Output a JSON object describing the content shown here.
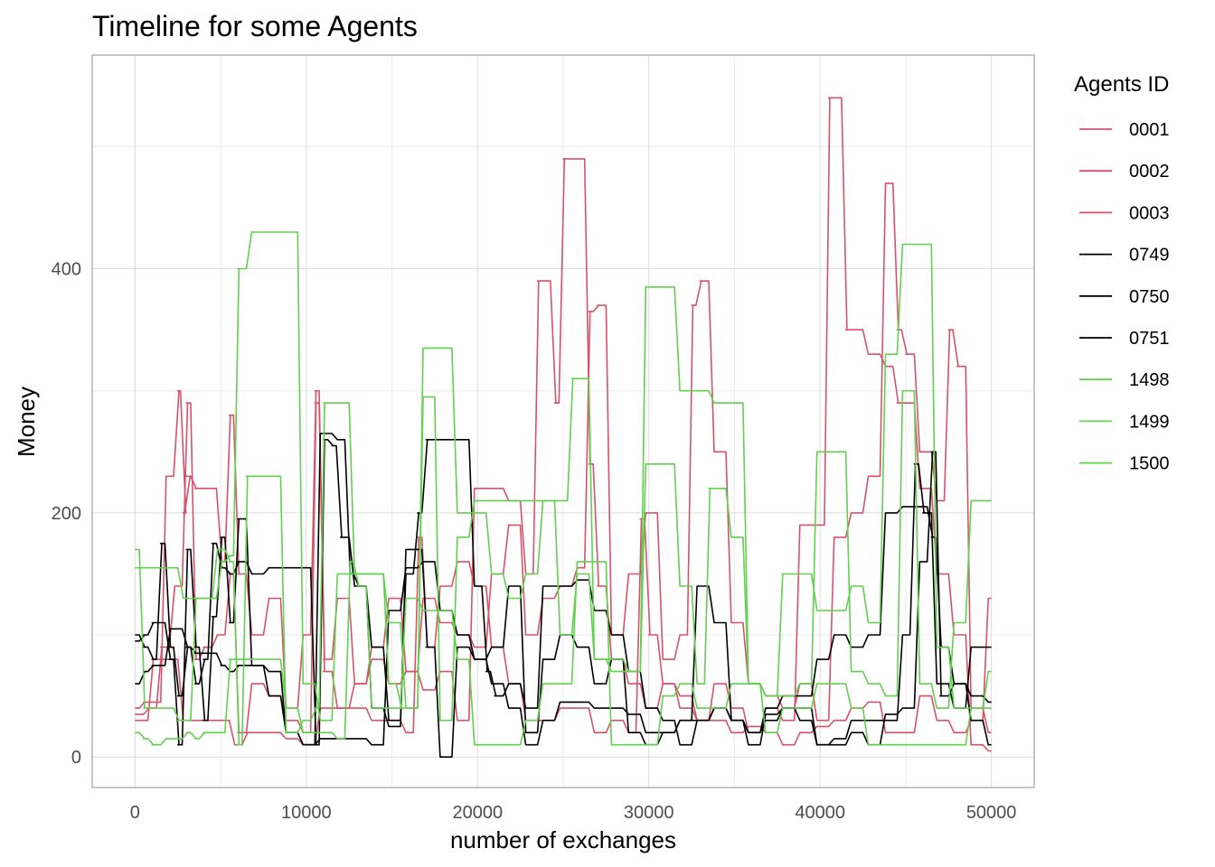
{
  "chart_data": {
    "type": "line",
    "title": "Timeline for some Agents",
    "xlabel": "number of exchanges",
    "ylabel": "Money",
    "xlim": [
      -2500,
      52500
    ],
    "ylim": [
      -25,
      575
    ],
    "x_ticks": [
      0,
      10000,
      20000,
      30000,
      40000,
      50000
    ],
    "y_ticks": [
      0,
      200,
      400
    ],
    "x_tick_labels": [
      "0",
      "10000",
      "20000",
      "30000",
      "40000",
      "50000"
    ],
    "y_tick_labels": [
      "0",
      "200",
      "400"
    ],
    "grid": true,
    "legend_position": "right",
    "legend_title": "Agents ID",
    "series": [
      {
        "name": "0001",
        "color": "#d6526b",
        "x": [
          0,
          500,
          1000,
          2000,
          2500,
          2800,
          3000,
          3500,
          4500,
          5000,
          5500,
          6000,
          7000,
          8000,
          9000,
          10000,
          10500,
          11000,
          12000,
          13000,
          14000,
          15000,
          16000,
          17000,
          18000,
          19000,
          20000,
          21000,
          22000,
          23000,
          23500,
          24000,
          24500,
          25000,
          26000,
          26500,
          27000,
          28000,
          29000,
          30000,
          31000,
          32000,
          33000,
          34000,
          35000,
          36000,
          37000,
          38000,
          39000,
          40000,
          40500,
          41000,
          41500,
          42000,
          43000,
          44000,
          44500,
          45000,
          46000,
          47000,
          48000,
          49000,
          50000
        ],
        "y": [
          40,
          45,
          45,
          230,
          300,
          200,
          230,
          220,
          220,
          160,
          280,
          150,
          100,
          130,
          40,
          100,
          300,
          80,
          130,
          60,
          90,
          130,
          70,
          55,
          70,
          30,
          220,
          220,
          210,
          150,
          390,
          390,
          290,
          490,
          490,
          240,
          140,
          80,
          60,
          40,
          60,
          50,
          30,
          60,
          40,
          20,
          40,
          30,
          190,
          190,
          540,
          540,
          350,
          350,
          330,
          320,
          290,
          290,
          220,
          150,
          100,
          10,
          5
        ]
      },
      {
        "name": "0002",
        "color": "#d6526b",
        "x": [
          0,
          1000,
          1500,
          2500,
          3000,
          3500,
          4000,
          5000,
          5500,
          6000,
          7000,
          8000,
          9000,
          10000,
          10500,
          11000,
          12000,
          13000,
          14000,
          15000,
          16000,
          17000,
          18000,
          19000,
          20000,
          21000,
          22000,
          23000,
          24000,
          25000,
          26000,
          26500,
          27000,
          28000,
          29000,
          30000,
          31000,
          32000,
          32500,
          33000,
          34000,
          35000,
          36000,
          37000,
          38000,
          39000,
          40000,
          41000,
          42000,
          43000,
          44000,
          44500,
          45000,
          46000,
          47000,
          47500,
          48000,
          49000,
          50000
        ],
        "y": [
          35,
          40,
          90,
          140,
          290,
          80,
          90,
          100,
          150,
          20,
          60,
          50,
          30,
          20,
          290,
          70,
          40,
          60,
          80,
          60,
          70,
          130,
          110,
          100,
          90,
          150,
          190,
          100,
          130,
          140,
          155,
          365,
          370,
          100,
          150,
          200,
          80,
          100,
          370,
          390,
          250,
          110,
          60,
          50,
          40,
          60,
          30,
          180,
          200,
          230,
          470,
          350,
          330,
          250,
          210,
          350,
          320,
          40,
          20
        ]
      },
      {
        "name": "0003",
        "color": "#d6526b",
        "x": [
          0,
          500,
          1000,
          2000,
          3000,
          4000,
          5000,
          6000,
          6500,
          7000,
          8000,
          9000,
          10000,
          11000,
          12000,
          13000,
          14000,
          15000,
          16000,
          16500,
          17000,
          18000,
          19000,
          20000,
          21000,
          22000,
          23000,
          24000,
          25000,
          26000,
          27000,
          28000,
          29000,
          29500,
          30000,
          31000,
          32000,
          33000,
          34000,
          35000,
          36000,
          37000,
          38000,
          39000,
          40000,
          41000,
          42000,
          43000,
          44000,
          45000,
          46000,
          47000,
          48000,
          49000,
          50000
        ],
        "y": [
          30,
          30,
          80,
          80,
          30,
          30,
          30,
          10,
          20,
          20,
          20,
          15,
          10,
          40,
          40,
          40,
          30,
          30,
          20,
          180,
          90,
          140,
          160,
          140,
          90,
          60,
          30,
          30,
          40,
          40,
          20,
          30,
          20,
          195,
          100,
          60,
          40,
          30,
          30,
          20,
          25,
          20,
          10,
          20,
          25,
          30,
          40,
          45,
          20,
          20,
          50,
          30,
          20,
          30,
          130
        ]
      },
      {
        "name": "0749",
        "color": "#000000",
        "x": [
          0,
          500,
          1000,
          1500,
          2000,
          2500,
          3000,
          3500,
          4000,
          4500,
          5000,
          5500,
          6000,
          7000,
          8000,
          9000,
          10000,
          10500,
          11000,
          11500,
          12000,
          13000,
          14000,
          15000,
          16000,
          16500,
          17000,
          18000,
          19000,
          20000,
          20500,
          21000,
          22000,
          23000,
          24000,
          25000,
          26000,
          27000,
          28000,
          29000,
          30000,
          31000,
          32000,
          33000,
          34000,
          35000,
          36000,
          37000,
          38000,
          39000,
          40000,
          41000,
          42000,
          43000,
          44000,
          45000,
          46000,
          46500,
          47000,
          48000,
          49000,
          50000
        ],
        "y": [
          100,
          90,
          80,
          175,
          90,
          50,
          90,
          60,
          80,
          175,
          155,
          150,
          160,
          150,
          155,
          155,
          155,
          10,
          260,
          255,
          180,
          140,
          90,
          30,
          150,
          200,
          260,
          260,
          260,
          140,
          70,
          50,
          60,
          40,
          140,
          140,
          145,
          120,
          100,
          70,
          40,
          30,
          10,
          30,
          40,
          30,
          20,
          40,
          50,
          50,
          80,
          100,
          90,
          100,
          200,
          205,
          205,
          180,
          90,
          60,
          50,
          45
        ]
      },
      {
        "name": "0750",
        "color": "#000000",
        "x": [
          0,
          500,
          1000,
          1500,
          2000,
          2500,
          3000,
          3500,
          4000,
          4500,
          5000,
          5500,
          6000,
          7000,
          8000,
          9000,
          10000,
          11000,
          12000,
          12500,
          13000,
          14000,
          15000,
          16000,
          16500,
          17000,
          18000,
          19000,
          20000,
          21000,
          22000,
          23000,
          24000,
          25000,
          26000,
          27000,
          28000,
          29000,
          30000,
          31000,
          32000,
          33000,
          34000,
          35000,
          36000,
          37000,
          38000,
          39000,
          40000,
          41000,
          42000,
          43000,
          44000,
          45000,
          45500,
          46000,
          47000,
          48000,
          49000,
          50000
        ],
        "y": [
          95,
          100,
          110,
          110,
          80,
          10,
          170,
          90,
          30,
          115,
          180,
          110,
          195,
          75,
          70,
          20,
          10,
          265,
          260,
          150,
          140,
          40,
          25,
          170,
          170,
          90,
          0,
          90,
          80,
          90,
          140,
          20,
          80,
          100,
          90,
          60,
          80,
          20,
          10,
          20,
          30,
          140,
          110,
          30,
          20,
          30,
          40,
          30,
          10,
          15,
          30,
          30,
          30,
          100,
          240,
          200,
          60,
          40,
          90,
          90
        ]
      },
      {
        "name": "0751",
        "color": "#000000",
        "x": [
          0,
          500,
          1000,
          1500,
          2000,
          2500,
          3000,
          3500,
          4000,
          4500,
          5000,
          5500,
          6000,
          7000,
          8000,
          9000,
          10000,
          11000,
          12000,
          13000,
          14000,
          15000,
          16000,
          17000,
          18000,
          19000,
          20000,
          21000,
          22000,
          23000,
          24000,
          25000,
          26000,
          27000,
          28000,
          29000,
          30000,
          31000,
          32000,
          33000,
          34000,
          35000,
          36000,
          37000,
          38000,
          39000,
          40000,
          41000,
          42000,
          43000,
          44000,
          45000,
          46000,
          46500,
          47000,
          48000,
          49000,
          50000
        ],
        "y": [
          60,
          70,
          75,
          75,
          105,
          105,
          90,
          85,
          85,
          85,
          75,
          70,
          75,
          75,
          50,
          20,
          10,
          15,
          15,
          15,
          10,
          120,
          155,
          160,
          120,
          100,
          80,
          60,
          40,
          10,
          30,
          45,
          45,
          40,
          40,
          35,
          20,
          20,
          30,
          30,
          40,
          30,
          10,
          35,
          40,
          40,
          10,
          10,
          20,
          10,
          35,
          40,
          160,
          250,
          50,
          60,
          30,
          10
        ]
      },
      {
        "name": "1498",
        "color": "#61d04f",
        "x": [
          0,
          500,
          1000,
          2000,
          2500,
          3000,
          3500,
          4000,
          4500,
          5000,
          5500,
          6000,
          7000,
          8000,
          9000,
          10000,
          11000,
          12000,
          13000,
          14000,
          15000,
          15500,
          16000,
          17000,
          18000,
          19000,
          20000,
          21000,
          22000,
          23000,
          24000,
          25000,
          25500,
          26000,
          27000,
          28000,
          29000,
          30000,
          31000,
          32000,
          33000,
          34000,
          35000,
          36000,
          37000,
          38000,
          39000,
          40000,
          41000,
          42000,
          43000,
          44000,
          45000,
          46000,
          47000,
          48000,
          49000,
          50000
        ],
        "y": [
          170,
          40,
          40,
          40,
          30,
          30,
          130,
          130,
          130,
          160,
          165,
          400,
          430,
          430,
          430,
          60,
          30,
          150,
          150,
          150,
          60,
          40,
          40,
          335,
          335,
          200,
          200,
          150,
          130,
          150,
          210,
          210,
          310,
          310,
          80,
          70,
          70,
          385,
          385,
          300,
          300,
          290,
          290,
          60,
          50,
          150,
          150,
          120,
          120,
          140,
          110,
          330,
          420,
          420,
          90,
          40,
          40,
          70
        ]
      },
      {
        "name": "1499",
        "color": "#61d04f",
        "x": [
          0,
          500,
          1000,
          2000,
          3000,
          4000,
          5000,
          5500,
          6000,
          6500,
          7000,
          8000,
          9000,
          10000,
          10500,
          11000,
          12000,
          13000,
          14000,
          15000,
          16000,
          17000,
          18000,
          19000,
          20000,
          21000,
          22000,
          23000,
          24000,
          25000,
          26000,
          27000,
          28000,
          29000,
          30000,
          31000,
          32000,
          33000,
          33500,
          34000,
          35000,
          36000,
          37000,
          38000,
          39000,
          40000,
          41000,
          42000,
          43000,
          44000,
          45000,
          46000,
          47000,
          48000,
          49000,
          50000
        ],
        "y": [
          155,
          155,
          155,
          155,
          130,
          130,
          170,
          160,
          10,
          230,
          230,
          230,
          20,
          30,
          40,
          290,
          290,
          150,
          150,
          110,
          40,
          295,
          30,
          180,
          210,
          210,
          210,
          210,
          210,
          100,
          150,
          80,
          80,
          70,
          240,
          240,
          140,
          60,
          220,
          220,
          180,
          60,
          50,
          50,
          60,
          250,
          250,
          70,
          60,
          50,
          300,
          60,
          40,
          110,
          210,
          210
        ]
      },
      {
        "name": "1500",
        "color": "#61d04f",
        "x": [
          0,
          500,
          1000,
          2000,
          2500,
          3000,
          3500,
          4000,
          5000,
          5500,
          6000,
          7000,
          8000,
          9000,
          10000,
          11000,
          12000,
          12500,
          13000,
          14000,
          15000,
          16000,
          17000,
          18000,
          19000,
          20000,
          21000,
          22000,
          23000,
          24000,
          25000,
          26000,
          27000,
          28000,
          29000,
          30000,
          31000,
          32000,
          33000,
          34000,
          35000,
          36000,
          37000,
          38000,
          39000,
          40000,
          41000,
          42000,
          43000,
          44000,
          45000,
          46000,
          47000,
          48000,
          49000,
          50000
        ],
        "y": [
          20,
          15,
          10,
          15,
          15,
          20,
          15,
          20,
          20,
          80,
          80,
          80,
          80,
          40,
          20,
          20,
          15,
          160,
          140,
          40,
          40,
          130,
          120,
          120,
          80,
          10,
          10,
          10,
          30,
          60,
          60,
          160,
          160,
          10,
          10,
          10,
          50,
          60,
          40,
          40,
          60,
          60,
          20,
          40,
          40,
          60,
          60,
          40,
          10,
          10,
          10,
          10,
          10,
          10,
          40,
          40
        ]
      }
    ]
  }
}
